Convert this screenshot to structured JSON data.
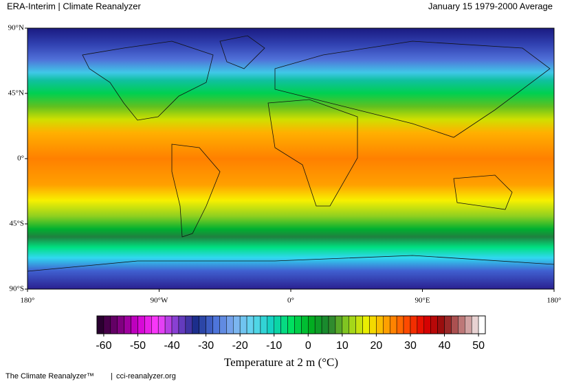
{
  "header": {
    "left": "ERA-Interim | Climate Reanalyzer",
    "right": "January 15 1979-2000 Average"
  },
  "map": {
    "xlim": [
      -180,
      180
    ],
    "ylim": [
      -90,
      90
    ],
    "xticks": [
      {
        "value": -180,
        "label": "180°"
      },
      {
        "value": -90,
        "label": "90°W"
      },
      {
        "value": 0,
        "label": "0°"
      },
      {
        "value": 90,
        "label": "90°E"
      },
      {
        "value": 180,
        "label": "180°"
      }
    ],
    "yticks": [
      {
        "value": 90,
        "label": "90°N"
      },
      {
        "value": 45,
        "label": "45°N"
      },
      {
        "value": 0,
        "label": "0°"
      },
      {
        "value": -45,
        "label": "45°S"
      },
      {
        "value": -90,
        "label": "90°S"
      }
    ]
  },
  "colorbar": {
    "lim": [
      -62,
      52
    ],
    "step": 2,
    "ticks": [
      -60,
      -50,
      -40,
      -30,
      -20,
      -10,
      0,
      10,
      20,
      30,
      40,
      50
    ],
    "palette": [
      "#2a0030",
      "#7a007a",
      "#d000d0",
      "#ff40ff",
      "#8040d0",
      "#1c2e8c",
      "#4a70d8",
      "#80b0f0",
      "#60d8f0",
      "#10d0c0",
      "#00e060",
      "#00b020",
      "#208030",
      "#90d020",
      "#f0f000",
      "#ffa000",
      "#ff5000",
      "#e00000",
      "#901010",
      "#c08080",
      "#ffffff"
    ],
    "title": "Temperature at 2 m (°C)"
  },
  "footer": {
    "brand": "The Climate Reanalyzer™",
    "separator": "|",
    "url": "cci-reanalyzer.org"
  }
}
